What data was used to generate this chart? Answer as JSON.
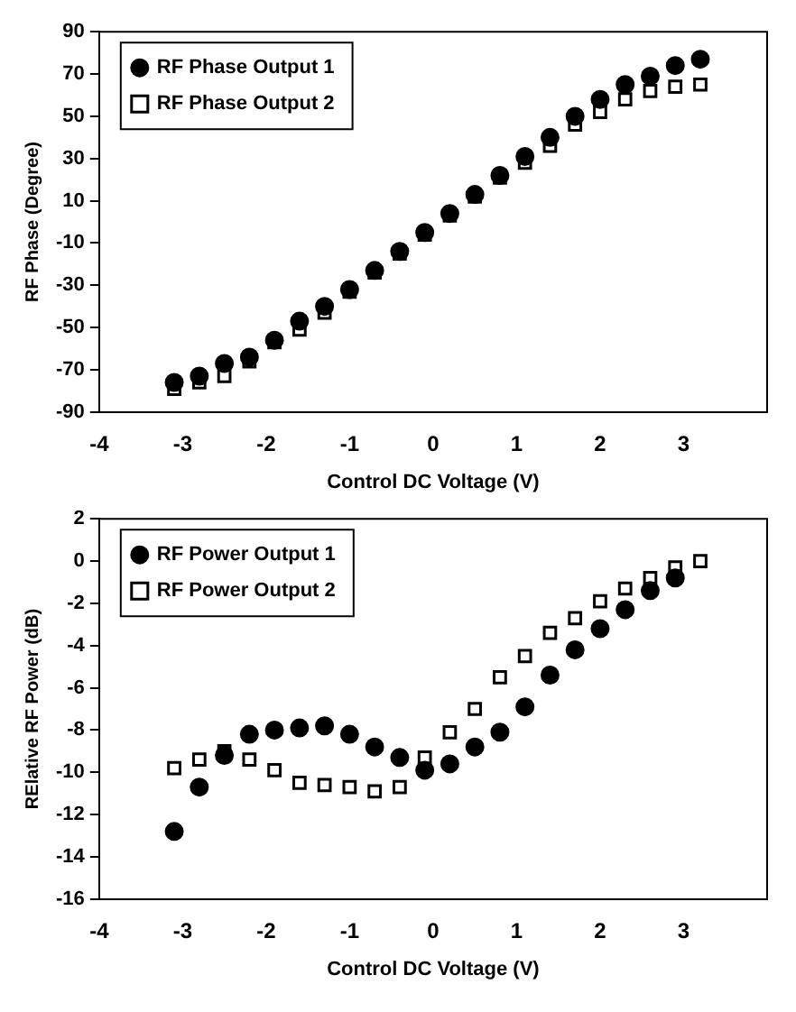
{
  "chart_data": [
    {
      "type": "scatter",
      "xlabel": "Control DC Voltage (V)",
      "ylabel": "RF Phase (Degree)",
      "x": [
        -3.1,
        -2.8,
        -2.5,
        -2.2,
        -1.9,
        -1.6,
        -1.3,
        -1.0,
        -0.7,
        -0.4,
        -0.1,
        0.2,
        0.5,
        0.8,
        1.1,
        1.4,
        1.7,
        2.0,
        2.3,
        2.6,
        2.9,
        3.2
      ],
      "xlim": [
        -4,
        4
      ],
      "xticks": [
        -4,
        -3,
        -2,
        -1,
        0,
        1,
        2,
        3
      ],
      "ylim": [
        -90,
        90
      ],
      "yticks": [
        -90,
        -70,
        -50,
        -30,
        -10,
        10,
        30,
        50,
        70,
        90
      ],
      "grid": false,
      "legend": "top left",
      "series": [
        {
          "name": "RF Phase Output 1",
          "color": "#000000",
          "marker": "circle",
          "values": [
            -76,
            -73,
            -67,
            -64,
            -56,
            -47,
            -40,
            -32,
            -23,
            -14,
            -5,
            4,
            13,
            22,
            31,
            40,
            50,
            58,
            65,
            69,
            74,
            77
          ]
        },
        {
          "name": "RF Phase Output 2",
          "color": "#000000",
          "marker": "square",
          "values": [
            -79,
            -76,
            -73,
            -66,
            -57,
            -51,
            -43,
            -33,
            -24,
            -15,
            -6,
            3,
            12,
            21,
            28,
            36,
            46,
            52,
            58,
            62,
            64,
            65
          ]
        }
      ]
    },
    {
      "type": "scatter",
      "xlabel": "Control DC Voltage (V)",
      "ylabel": "RElative RF Power (dB)",
      "x": [
        -3.1,
        -2.8,
        -2.5,
        -2.2,
        -1.9,
        -1.6,
        -1.3,
        -1.0,
        -0.7,
        -0.4,
        -0.1,
        0.2,
        0.5,
        0.8,
        1.1,
        1.4,
        1.7,
        2.0,
        2.3,
        2.6,
        2.9,
        3.2
      ],
      "xlim": [
        -4,
        4
      ],
      "xticks": [
        -4,
        -3,
        -2,
        -1,
        0,
        1,
        2,
        3
      ],
      "ylim": [
        -16,
        2
      ],
      "yticks": [
        -16,
        -14,
        -12,
        -10,
        -8,
        -6,
        -4,
        -2,
        0,
        2
      ],
      "grid": false,
      "legend": "top left",
      "series": [
        {
          "name": "RF Power Output 1",
          "color": "#000000",
          "marker": "circle",
          "values": [
            -12.8,
            -10.7,
            -9.2,
            -8.2,
            -8.0,
            -7.9,
            -7.8,
            -8.2,
            -8.8,
            -9.3,
            -9.9,
            -9.6,
            -8.8,
            -8.1,
            -6.9,
            -5.4,
            -4.2,
            -3.2,
            -2.3,
            -1.4,
            -0.8,
            null
          ]
        },
        {
          "name": "RF Power Output 2",
          "color": "#000000",
          "marker": "square",
          "values": [
            -9.8,
            -9.4,
            -9.0,
            -9.4,
            -9.9,
            -10.5,
            -10.6,
            -10.7,
            -10.9,
            -10.7,
            -9.3,
            -8.1,
            -7.0,
            -5.5,
            -4.5,
            -3.4,
            -2.7,
            -1.9,
            -1.3,
            -0.8,
            -0.3,
            0
          ]
        }
      ]
    }
  ]
}
